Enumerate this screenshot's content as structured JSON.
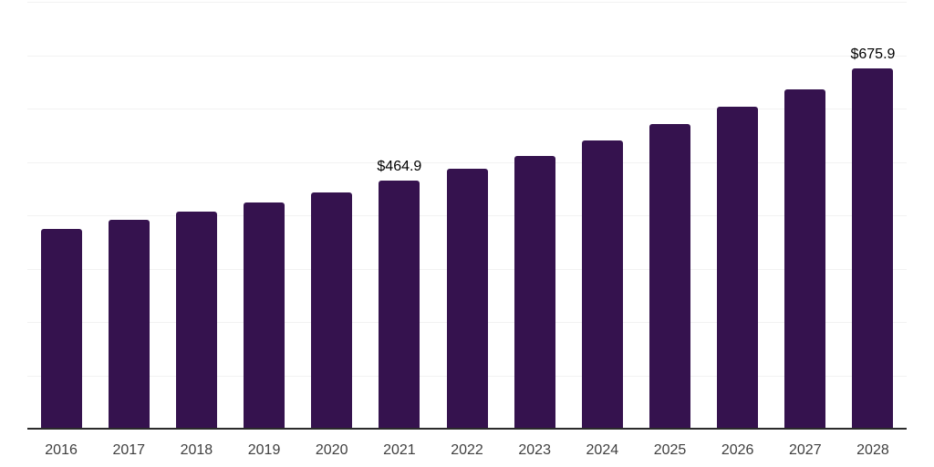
{
  "chart_data": {
    "type": "bar",
    "title": "",
    "xlabel": "",
    "ylabel": "",
    "categories": [
      "2016",
      "2017",
      "2018",
      "2019",
      "2020",
      "2021",
      "2022",
      "2023",
      "2024",
      "2025",
      "2026",
      "2027",
      "2028"
    ],
    "values": [
      375.0,
      391.0,
      406.5,
      423.5,
      443.5,
      464.9,
      487.8,
      511.7,
      540.2,
      571.4,
      603.8,
      636.7,
      675.9
    ],
    "data_labels": {
      "2021": "$464.9",
      "2028": "$675.9"
    },
    "ylim": [
      0,
      800
    ],
    "gridline_step": 100,
    "grid": "horizontal-only",
    "legend": "none",
    "y_axis_labels_visible": false,
    "bar_color": "#35124e",
    "background": "#ffffff"
  },
  "styles": {
    "grid_color": "#f2f2f2",
    "axis_color": "#2b2b2b",
    "tick_label_color": "#3f3f3f",
    "value_label_color": "#000000"
  }
}
